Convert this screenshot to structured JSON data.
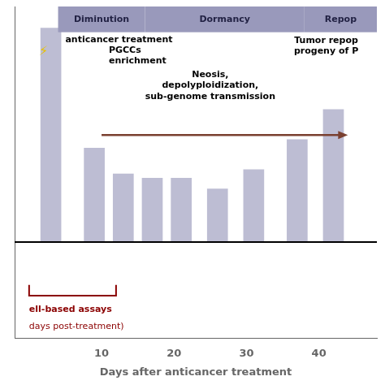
{
  "chart_data": {
    "type": "bar",
    "x": [
      3,
      9,
      13,
      17,
      21,
      26,
      31,
      37,
      42
    ],
    "values": [
      1.0,
      0.44,
      0.32,
      0.3,
      0.3,
      0.25,
      0.34,
      0.48,
      0.62
    ],
    "color": "#9999bb",
    "xlim": [
      -2,
      48
    ],
    "ylim": [
      -0.45,
      1.1
    ],
    "xticks": [
      10,
      20,
      30,
      40
    ],
    "xlabel": "Days after anticancer treatment",
    "grid": false,
    "legend": false,
    "tick_labels": "x",
    "phase_bands": [
      {
        "label": "Diminution",
        "x0": 4,
        "x1": 16
      },
      {
        "label": "Dormancy",
        "x0": 16,
        "x1": 38
      },
      {
        "label": "Repop",
        "x0": 38,
        "x1": 48
      }
    ],
    "annotations": [
      {
        "text": "Neosis,\ndepolyploidization,\nsub-genome transmission"
      },
      {
        "text": "PGCCs\nenrichment"
      },
      {
        "text": "anticancer treatment"
      },
      {
        "text": "Tumor repop\nprogeny of P"
      },
      {
        "text": "ell-based assays",
        "color": "#8b0000"
      },
      {
        "text": "days post-treatment)",
        "color": "#8b0000"
      },
      {
        "text": "⚡"
      }
    ]
  }
}
